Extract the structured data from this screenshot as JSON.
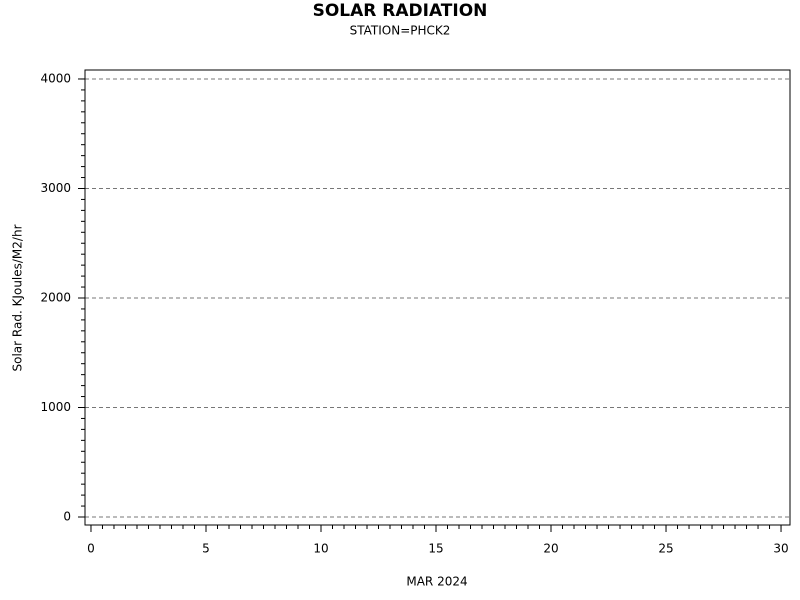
{
  "chart_data": {
    "type": "line",
    "title": "SOLAR RADIATION",
    "subtitle": "STATION=PHCK2",
    "xlabel": "MAR 2024",
    "ylabel": "Solar Rad. KJoules/M2/hr",
    "xlim": [
      -0.26,
      30.39
    ],
    "xticks": [
      0,
      5,
      10,
      15,
      20,
      25,
      30
    ],
    "xminorstep": 0.5,
    "ylim": [
      -73,
      4082
    ],
    "yticks": [
      0,
      1000,
      2000,
      3000,
      4000
    ],
    "yminorstep": 100,
    "grid": true,
    "series": []
  }
}
